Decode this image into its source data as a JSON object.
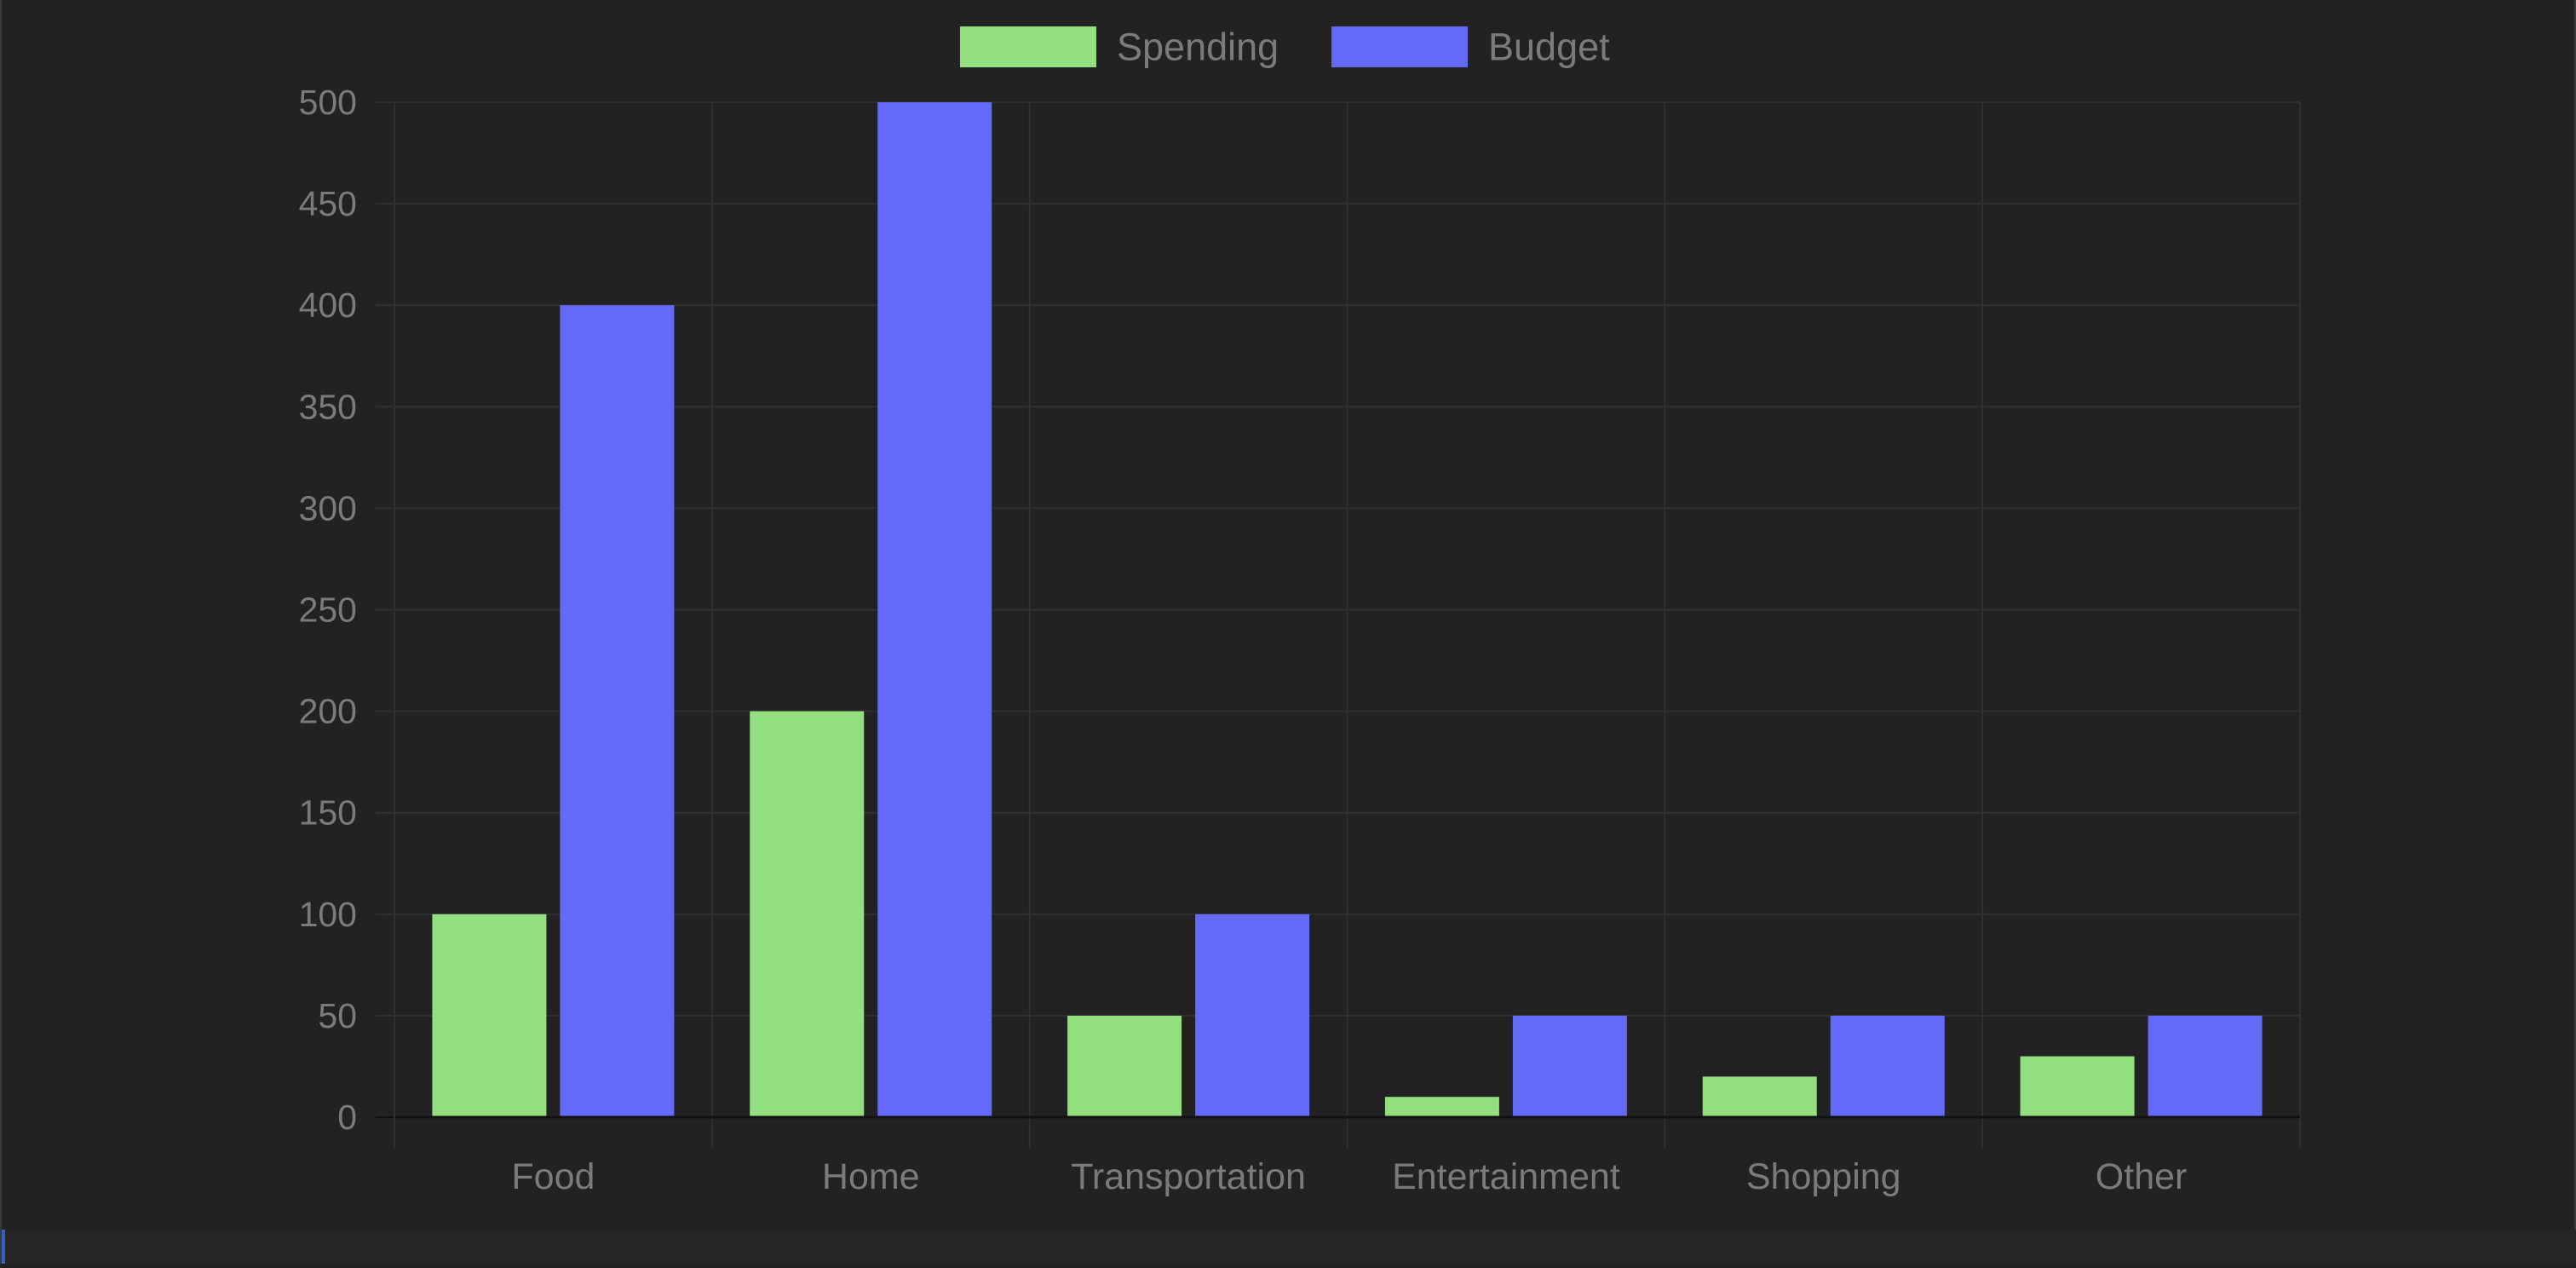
{
  "chart_data": {
    "type": "bar",
    "title": "",
    "xlabel": "",
    "ylabel": "",
    "categories": [
      "Food",
      "Home",
      "Transportation",
      "Entertainment",
      "Shopping",
      "Other"
    ],
    "series": [
      {
        "name": "Spending",
        "color": "#93df80",
        "values": [
          100,
          200,
          50,
          10,
          20,
          30
        ]
      },
      {
        "name": "Budget",
        "color": "#6469f7",
        "values": [
          400,
          500,
          100,
          50,
          50,
          50
        ]
      }
    ],
    "ylim": [
      0,
      500
    ],
    "yticks": [
      "0",
      "50",
      "100",
      "150",
      "200",
      "250",
      "300",
      "350",
      "400",
      "450",
      "500"
    ],
    "grid": true,
    "legend_position": "top-center",
    "colors": {
      "background": "#222222",
      "grid": "#303030",
      "axis": "#111111",
      "text": "#7b7b7b"
    }
  }
}
